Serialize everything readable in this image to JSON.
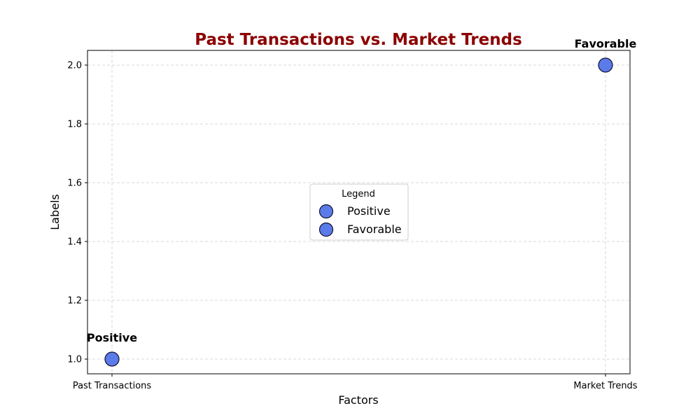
{
  "chart_data": {
    "type": "scatter",
    "title": "Past Transactions vs. Market Trends",
    "xlabel": "Factors",
    "ylabel": "Labels",
    "categories": [
      "Past Transactions",
      "Market Trends"
    ],
    "y_ticks": [
      "1.0",
      "1.2",
      "1.4",
      "1.6",
      "1.8",
      "2.0"
    ],
    "ylim": [
      0.95,
      2.05
    ],
    "grid": true,
    "legend": {
      "title": "Legend",
      "placement": "center"
    },
    "series": [
      {
        "name": "Positive",
        "x": "Past Transactions",
        "y": 1.0,
        "label": "Positive"
      },
      {
        "name": "Favorable",
        "x": "Market Trends",
        "y": 2.0,
        "label": "Favorable"
      }
    ]
  },
  "colors": {
    "title": "#8b0000",
    "marker_fill": "#5b7be8",
    "marker_edge": "#111133"
  }
}
